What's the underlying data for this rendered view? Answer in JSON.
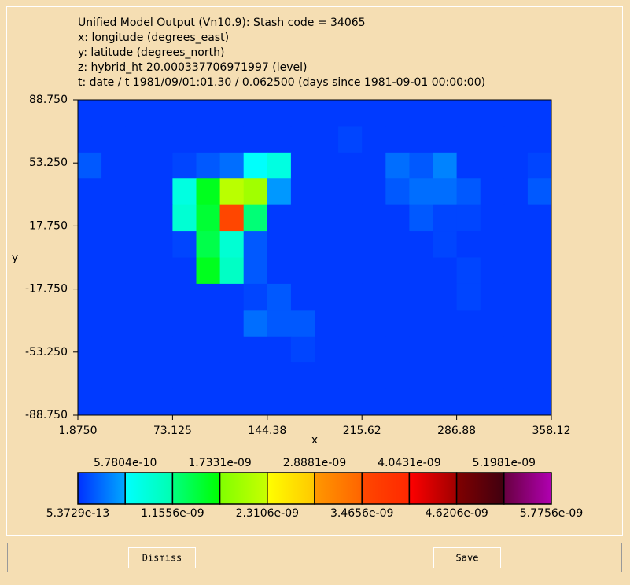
{
  "chart_data": {
    "type": "heatmap",
    "title": "Unified Model Output (Vn10.9): Stash code = 34065",
    "annotations": [
      "x: longitude  (degrees_east)",
      "y: latitude  (degrees_north)",
      "z: hybrid_ht 20.000337706971997 (level)",
      "t: date / t 1981/09/01:01.30 / 0.062500 (days since 1981-09-01 00:00:00)"
    ],
    "xlabel": "x",
    "ylabel": "y",
    "xlim": [
      1.875,
      358.125
    ],
    "xticks": [
      {
        "value": 1.875,
        "label": "1.8750"
      },
      73.125,
      144.38,
      215.62,
      286.88,
      358.12
    ],
    "ylim": [
      -88.75,
      88.75
    ],
    "yticks": [
      {
        "value": 88.75,
        "label": "88.750"
      },
      {
        "value": 53.25,
        "label": "53.250"
      },
      {
        "value": 17.75,
        "label": "17.750"
      },
      {
        "value": -17.75,
        "label": "-17.750"
      },
      {
        "value": -53.25,
        "label": "-53.250"
      },
      {
        "value": -88.75,
        "label": "-88.750"
      }
    ],
    "z": [
      [
        5e-11,
        5e-11,
        5e-11,
        5e-11,
        5e-11,
        5e-11,
        5e-11,
        5e-11,
        5e-11,
        5e-11,
        5e-11,
        5e-11,
        5e-11,
        5e-11,
        5e-11,
        5e-11,
        5e-11,
        5e-11,
        5e-11,
        5e-11
      ],
      [
        5e-11,
        5e-11,
        5e-11,
        5e-11,
        5e-11,
        5e-11,
        5e-11,
        5e-11,
        5e-11,
        5e-11,
        5e-11,
        1e-10,
        5e-11,
        5e-11,
        5e-11,
        5e-11,
        5e-11,
        5e-11,
        5e-11,
        5e-11
      ],
      [
        2e-10,
        5e-11,
        5e-11,
        5e-11,
        1e-10,
        2e-10,
        3e-10,
        6e-10,
        8e-10,
        5e-11,
        5e-11,
        5e-11,
        5e-11,
        3e-10,
        2e-10,
        4e-10,
        5e-11,
        5e-11,
        5e-11,
        1e-10
      ],
      [
        5e-11,
        5e-11,
        5e-11,
        5e-11,
        8e-10,
        1.6e-09,
        2.2e-09,
        2e-09,
        5e-10,
        5e-11,
        5e-11,
        5e-11,
        5e-11,
        2e-10,
        3e-10,
        3e-10,
        2e-10,
        5e-11,
        5e-11,
        2e-10
      ],
      [
        5e-11,
        5e-11,
        5e-11,
        5e-11,
        9e-10,
        1.5e-09,
        3.5e-09,
        1.2e-09,
        5e-11,
        5e-11,
        5e-11,
        5e-11,
        5e-11,
        5e-11,
        2e-10,
        1e-10,
        1e-10,
        5e-11,
        5e-11,
        5e-11
      ],
      [
        5e-11,
        5e-11,
        5e-11,
        5e-11,
        1e-10,
        1.4e-09,
        9e-10,
        2e-10,
        5e-11,
        5e-11,
        5e-11,
        5e-11,
        5e-11,
        5e-11,
        5e-11,
        1e-10,
        5e-11,
        5e-11,
        5e-11,
        5e-11
      ],
      [
        5e-11,
        5e-11,
        5e-11,
        5e-11,
        5e-11,
        1.6e-09,
        1e-09,
        2e-10,
        5e-11,
        5e-11,
        5e-11,
        5e-11,
        5e-11,
        5e-11,
        5e-11,
        5e-11,
        1e-10,
        5e-11,
        5e-11,
        5e-11
      ],
      [
        5e-11,
        5e-11,
        5e-11,
        5e-11,
        5e-11,
        5e-11,
        5e-11,
        1e-10,
        2e-10,
        5e-11,
        5e-11,
        5e-11,
        5e-11,
        5e-11,
        5e-11,
        5e-11,
        1e-10,
        5e-11,
        5e-11,
        5e-11
      ],
      [
        5e-11,
        5e-11,
        5e-11,
        5e-11,
        5e-11,
        5e-11,
        5e-11,
        3e-10,
        2e-10,
        2e-10,
        5e-11,
        5e-11,
        5e-11,
        5e-11,
        5e-11,
        5e-11,
        5e-11,
        5e-11,
        5e-11,
        5e-11
      ],
      [
        5e-11,
        5e-11,
        5e-11,
        5e-11,
        5e-11,
        5e-11,
        5e-11,
        5e-11,
        5e-11,
        1e-10,
        5e-11,
        5e-11,
        5e-11,
        5e-11,
        5e-11,
        5e-11,
        5e-11,
        5e-11,
        5e-11,
        5e-11
      ],
      [
        5e-11,
        5e-11,
        5e-11,
        5e-11,
        5e-11,
        5e-11,
        5e-11,
        5e-11,
        5e-11,
        5e-11,
        5e-11,
        5e-11,
        5e-11,
        5e-11,
        5e-11,
        5e-11,
        5e-11,
        5e-11,
        5e-11,
        5e-11
      ],
      [
        5e-11,
        5e-11,
        5e-11,
        5e-11,
        5e-11,
        5e-11,
        5e-11,
        5e-11,
        5e-11,
        5e-11,
        5e-11,
        5e-11,
        5e-11,
        5e-11,
        5e-11,
        5e-11,
        5e-11,
        5e-11,
        5e-11,
        5e-11
      ]
    ],
    "colorbar": {
      "ticks": [
        {
          "value": 5.3729e-13,
          "label": "5.3729e-13"
        },
        {
          "value": 5.7804e-10,
          "label": "5.7804e-10"
        },
        {
          "value": 1.1556e-09,
          "label": "1.1556e-09"
        },
        {
          "value": 1.7331e-09,
          "label": "1.7331e-09"
        },
        {
          "value": 2.3106e-09,
          "label": "2.3106e-09"
        },
        {
          "value": 2.8881e-09,
          "label": "2.8881e-09"
        },
        {
          "value": 3.4656e-09,
          "label": "3.4656e-09"
        },
        {
          "value": 4.0431e-09,
          "label": "4.0431e-09"
        },
        {
          "value": 4.6206e-09,
          "label": "4.6206e-09"
        },
        {
          "value": 5.1981e-09,
          "label": "5.1981e-09"
        },
        {
          "value": 5.7756e-09,
          "label": "5.7756e-09"
        }
      ],
      "colors": [
        [
          "#0030ff",
          "#00a8ff"
        ],
        [
          "#00ffff",
          "#00ffb0"
        ],
        [
          "#00ff80",
          "#00ff00"
        ],
        [
          "#80ff00",
          "#c8ff00"
        ],
        [
          "#ffff00",
          "#ffc800"
        ],
        [
          "#ff9800",
          "#ff6400"
        ],
        [
          "#ff4800",
          "#ff2800"
        ],
        [
          "#ff0000",
          "#a00000"
        ],
        [
          "#800000",
          "#400010"
        ],
        [
          "#680040",
          "#b000b0"
        ]
      ]
    }
  },
  "buttons": [
    "Dismiss",
    "Save"
  ]
}
